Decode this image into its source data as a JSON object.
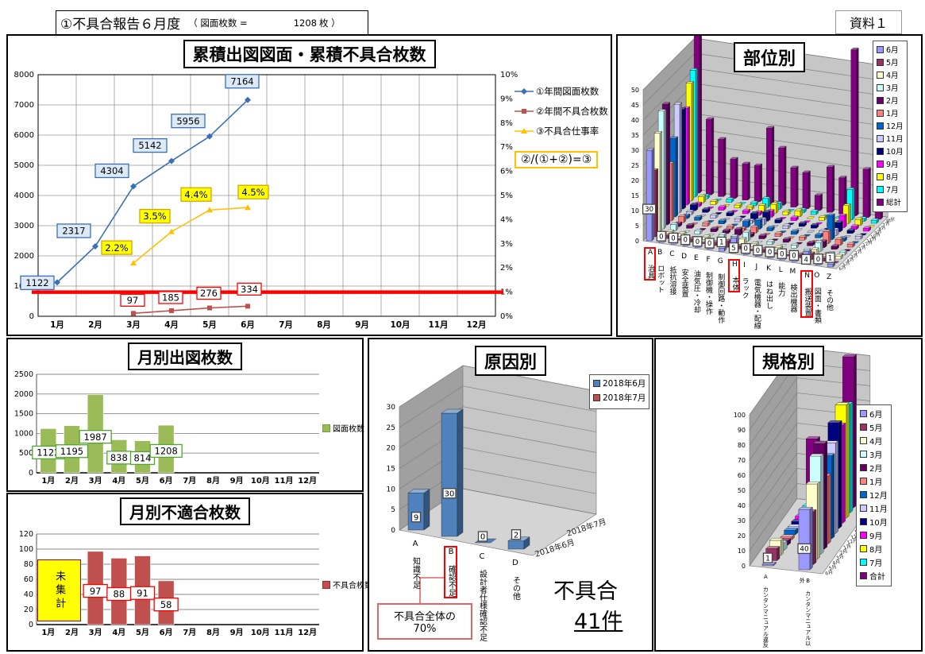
{
  "header": {
    "title": "①不具合報告６月度",
    "meta_label": "（ 図面枚数 =",
    "meta_value": "1208",
    "meta_unit": "枚 ）"
  },
  "doc_ref": "資料１",
  "month_colors": {
    "6月": "#9999FF",
    "5月": "#993366",
    "4月": "#FFFFCC",
    "3月": "#CCFFFF",
    "2月": "#660066",
    "1月": "#FF8080",
    "12月": "#0066CC",
    "11月": "#CCCCFF",
    "10月": "#000080",
    "9月": "#FF00FF",
    "8月": "#FFFF00",
    "7月": "#00FFFF",
    "総計": "#800080",
    "合計": "#800080"
  },
  "chart_data": [
    {
      "id": "cumulative",
      "type": "line",
      "title": "累積出図図面・累積不具合枚数",
      "categories": [
        "1月",
        "2月",
        "3月",
        "4月",
        "5月",
        "6月",
        "7月",
        "8月",
        "9月",
        "10月",
        "11月",
        "12月"
      ],
      "left_axis": {
        "min": 0,
        "max": 8000,
        "step": 1000
      },
      "right_axis": {
        "min": 0,
        "max": 10,
        "step": 1,
        "unit": "%"
      },
      "series": [
        {
          "name": "①年間図面枚数",
          "axis": "left",
          "color": "#3A6FB7",
          "marker": "diamond",
          "label_bg": "#DCE9F7",
          "label_border": "#3A6FB7",
          "values": [
            1122,
            2317,
            4304,
            5142,
            5956,
            7164,
            null,
            null,
            null,
            null,
            null,
            null
          ]
        },
        {
          "name": "②年間不具合枚数",
          "axis": "left",
          "color": "#C0504D",
          "marker": "square",
          "label_bg": "#FFFFFF",
          "label_border": "#FF0000",
          "values": [
            null,
            null,
            97,
            185,
            276,
            334,
            null,
            null,
            null,
            null,
            null,
            null
          ]
        },
        {
          "name": "③不具合仕事率",
          "axis": "right",
          "color": "#FFC000",
          "marker": "triangle",
          "label_bg": "#FFFF00",
          "label_border": "#D9A400",
          "label_suffix": "%",
          "values": [
            null,
            null,
            2.2,
            3.5,
            4.4,
            4.5,
            null,
            null,
            null,
            null,
            null,
            null
          ]
        }
      ],
      "target_line": {
        "axis": "right",
        "value": 1,
        "color": "#FF0000"
      },
      "legend_note": "②/(①+②)=③"
    },
    {
      "id": "by-part",
      "type": "3d-bar",
      "title": "部位別",
      "y_axis": {
        "min": 0,
        "max": 50,
        "step": 5
      },
      "categories": [
        "A 治具",
        "B ロボット",
        "C 抵抗溶接",
        "D 安全装置",
        "E 油気圧・冷却",
        "F 制御機・操作",
        "G 制御回路・動作",
        "H 本体",
        "I ラック",
        "J 電気機器・配線",
        "K はね出し",
        "L 能力",
        "M 検出機器",
        "N 搬送装置",
        "O 図面・書類",
        "Z その他"
      ],
      "highlighted_categories": [
        0,
        7,
        13
      ],
      "series_front_to_back": [
        "6月",
        "5月",
        "4月",
        "3月",
        "2月",
        "1月",
        "12月",
        "11月",
        "10月",
        "9月",
        "8月",
        "7月",
        "総計"
      ],
      "labeled_series": "6月",
      "series": {
        "6月": [
          30,
          0,
          0,
          0,
          0,
          0,
          1,
          5,
          0,
          0,
          0,
          0,
          0,
          4,
          0,
          1
        ],
        "5月": [
          22,
          1,
          0,
          1,
          0,
          1,
          2,
          1,
          0,
          1,
          0,
          0,
          1,
          2,
          1,
          0
        ],
        "4月": [
          33,
          1,
          1,
          0,
          1,
          0,
          1,
          2,
          1,
          0,
          1,
          0,
          0,
          2,
          1,
          1
        ],
        "3月": [
          39,
          2,
          0,
          1,
          0,
          1,
          1,
          3,
          0,
          1,
          0,
          1,
          0,
          3,
          0,
          1
        ],
        "2月": [
          40,
          1,
          1,
          0,
          1,
          1,
          2,
          1,
          1,
          0,
          1,
          0,
          1,
          2,
          1,
          0
        ],
        "1月": [
          19,
          2,
          0,
          1,
          0,
          1,
          1,
          2,
          0,
          1,
          0,
          1,
          0,
          4,
          2,
          1
        ],
        "12月": [
          26,
          1,
          1,
          0,
          1,
          0,
          2,
          3,
          1,
          0,
          1,
          0,
          1,
          8,
          1,
          0
        ],
        "11月": [
          36,
          1,
          0,
          1,
          0,
          1,
          1,
          2,
          0,
          1,
          0,
          0,
          1,
          2,
          0,
          1
        ],
        "10月": [
          33,
          2,
          1,
          0,
          1,
          0,
          2,
          3,
          1,
          0,
          1,
          1,
          0,
          3,
          1,
          0
        ],
        "9月": [
          32,
          1,
          0,
          1,
          0,
          1,
          1,
          2,
          0,
          1,
          0,
          0,
          1,
          4,
          1,
          1
        ],
        "8月": [
          39,
          2,
          1,
          0,
          1,
          1,
          2,
          3,
          1,
          2,
          0,
          1,
          0,
          6,
          2,
          0
        ],
        "7月": [
          42,
          1,
          0,
          1,
          0,
          1,
          3,
          2,
          0,
          1,
          1,
          0,
          0,
          10,
          1,
          1
        ],
        "総計": [
          56,
          25,
          19,
          13,
          12,
          12,
          25,
          19,
          13,
          12,
          5,
          15,
          12,
          55,
          16,
          23
        ]
      },
      "note": "6月 series values are from data labels; other series estimated from bar heights"
    },
    {
      "id": "monthly-drawings",
      "type": "bar",
      "title": "月別出図枚数",
      "categories": [
        "1月",
        "2月",
        "3月",
        "4月",
        "5月",
        "6月",
        "7月",
        "8月",
        "9月",
        "10月",
        "11月",
        "12月"
      ],
      "y_axis": {
        "min": 0,
        "max": 2500,
        "step": 500
      },
      "series": [
        {
          "name": "図面枚数",
          "color": "#9BBB59",
          "label_border": "#4EA72E",
          "values": [
            1122,
            1195,
            1987,
            838,
            814,
            1208,
            null,
            null,
            null,
            null,
            null,
            null
          ]
        }
      ]
    },
    {
      "id": "monthly-defects",
      "type": "bar",
      "title": "月別不適合枚数",
      "categories": [
        "1月",
        "2月",
        "3月",
        "4月",
        "5月",
        "6月",
        "7月",
        "8月",
        "9月",
        "10月",
        "11月",
        "12月"
      ],
      "y_axis": {
        "min": 0,
        "max": 120,
        "step": 20
      },
      "series": [
        {
          "name": "不具合枚数",
          "color": "#C0504D",
          "label_border": "#FF0000",
          "values": [
            null,
            null,
            97,
            88,
            91,
            58,
            null,
            null,
            null,
            null,
            null,
            null
          ]
        }
      ],
      "note_box": {
        "text": "未集計",
        "span": [
          "1月",
          "2月"
        ],
        "color": "#FFFF00"
      }
    },
    {
      "id": "by-cause",
      "type": "3d-bar",
      "title": "原因別",
      "y_axis": {
        "min": 0,
        "max": 30,
        "step": 5
      },
      "categories": [
        "A 知識不足",
        "B 確認不足",
        "C 設計者仕様確認不足",
        "D その他"
      ],
      "highlighted_categories": [
        1
      ],
      "series_front_to_back": [
        "2018年6月",
        "2018年7月"
      ],
      "labeled_series": "2018年6月",
      "series": {
        "2018年6月": [
          9,
          30,
          0,
          2
        ],
        "2018年7月": [
          null,
          null,
          null,
          null
        ]
      },
      "legend": [
        {
          "name": "2018年6月",
          "color": "#4F81BD"
        },
        {
          "name": "2018年7月",
          "color": "#C0504D"
        }
      ],
      "callout": {
        "line1": "不具合全体の",
        "line2": "70%"
      },
      "annotation": {
        "line1": "不具合",
        "line2": "41件"
      }
    },
    {
      "id": "by-standard",
      "type": "3d-bar",
      "title": "規格別",
      "y_axis": {
        "min": 0,
        "max": 100,
        "step": 10
      },
      "categories": [
        "A カンタンマニュアル違反",
        "B カンタンマニュアル以外"
      ],
      "highlighted_categories": [],
      "series_front_to_back": [
        "6月",
        "5月",
        "4月",
        "3月",
        "2月",
        "1月",
        "12月",
        "11月",
        "10月",
        "9月",
        "8月",
        "7月",
        "合計"
      ],
      "labeled_series": "6月",
      "series": {
        "6月": [
          1,
          40
        ],
        "5月": [
          8,
          35
        ],
        "4月": [
          10,
          50
        ],
        "3月": [
          5,
          65
        ],
        "2月": [
          3,
          70
        ],
        "1月": [
          2,
          45
        ],
        "12月": [
          3,
          55
        ],
        "11月": [
          2,
          60
        ],
        "10月": [
          2,
          70
        ],
        "9月": [
          2,
          65
        ],
        "8月": [
          3,
          75
        ],
        "7月": [
          2,
          72
        ],
        "合計": [
          43,
          100
        ]
      },
      "note": "6月 series values are from data labels; other series estimated from bar heights"
    }
  ]
}
